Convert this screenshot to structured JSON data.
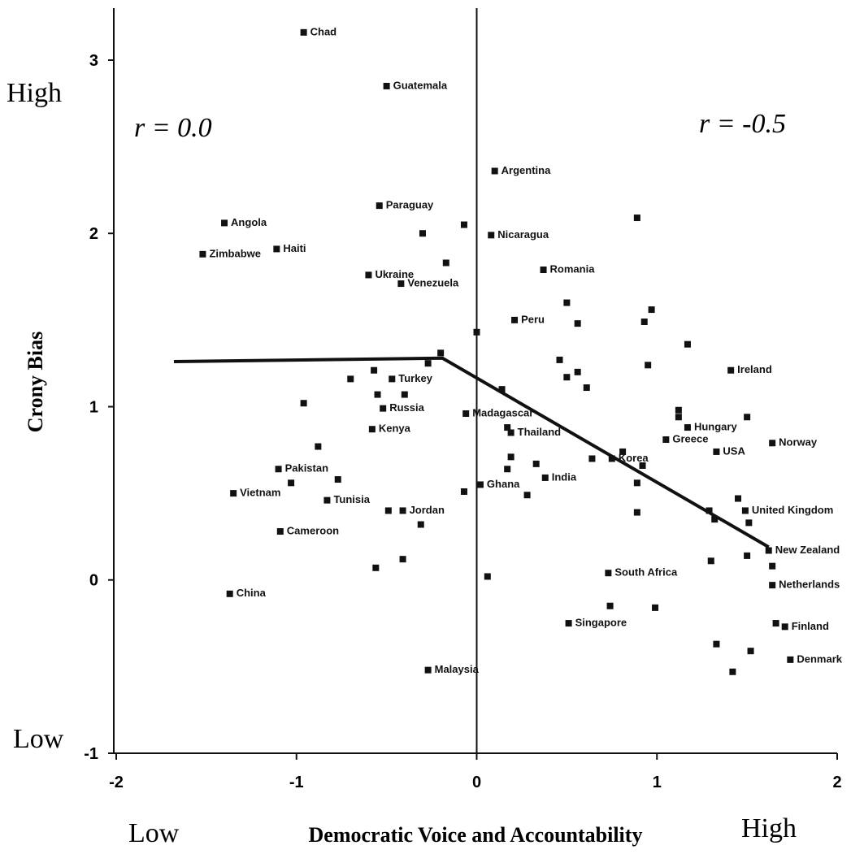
{
  "chart_data": {
    "type": "scatter",
    "x_label": "Democratic Voice and Accountability",
    "y_label": "Crony Bias",
    "annotations": [
      "r = 0.0",
      "r = -0.5"
    ],
    "axis_end_labels": {
      "y_high": "High",
      "y_low": "Low",
      "x_low": "Low",
      "x_high": "High"
    },
    "xlim": [
      -2,
      2
    ],
    "ylim": [
      -1,
      3.3
    ],
    "xticks": [
      -2,
      -1,
      0,
      1,
      2
    ],
    "yticks": [
      -1,
      0,
      1,
      2,
      3
    ],
    "series": [
      {
        "name": "Countries",
        "color": "#111111",
        "x": [
          -0.96,
          -0.5,
          0.1,
          -0.54,
          -1.4,
          0.08,
          -1.52,
          -1.11,
          -0.6,
          -0.42,
          0.37,
          0.21,
          1.41,
          -0.47,
          -0.52,
          -0.06,
          -0.58,
          0.19,
          1.17,
          1.05,
          1.33,
          1.64,
          -1.1,
          0.75,
          0.38,
          0.02,
          -1.35,
          -0.83,
          -0.41,
          -1.09,
          1.49,
          1.62,
          1.64,
          0.73,
          -1.37,
          0.51,
          1.71,
          1.74,
          -0.27,
          -0.3,
          -0.07,
          -0.17,
          0.89,
          0.0,
          0.5,
          0.56,
          0.97,
          0.93,
          1.17,
          0.46,
          0.5,
          0.56,
          0.61,
          0.95,
          -0.2,
          -0.7,
          -0.57,
          -0.55,
          -0.4,
          -0.27,
          -0.96,
          0.14,
          1.12,
          1.12,
          1.5,
          0.17,
          -0.88,
          0.19,
          0.17,
          0.33,
          0.64,
          0.81,
          0.92,
          0.89,
          0.89,
          -1.03,
          -0.77,
          -0.07,
          0.28,
          -0.49,
          -0.31,
          1.29,
          1.32,
          1.45,
          1.51,
          -0.56,
          -0.41,
          0.06,
          1.3,
          1.5,
          1.64,
          0.74,
          0.99,
          1.66,
          1.33,
          1.52,
          1.42
        ],
        "values": [
          3.16,
          2.85,
          2.36,
          2.16,
          2.06,
          1.99,
          1.88,
          1.91,
          1.76,
          1.71,
          1.79,
          1.5,
          1.21,
          1.16,
          0.99,
          0.96,
          0.87,
          0.85,
          0.88,
          0.81,
          0.74,
          0.79,
          0.64,
          0.7,
          0.59,
          0.55,
          0.5,
          0.46,
          0.4,
          0.28,
          0.4,
          0.17,
          -0.03,
          0.04,
          -0.08,
          -0.25,
          -0.27,
          -0.46,
          -0.52,
          2.0,
          2.05,
          1.83,
          2.09,
          1.43,
          1.6,
          1.48,
          1.56,
          1.49,
          1.36,
          1.27,
          1.17,
          1.2,
          1.11,
          1.24,
          1.31,
          1.16,
          1.21,
          1.07,
          1.07,
          1.25,
          1.02,
          1.1,
          0.98,
          0.94,
          0.94,
          0.88,
          0.77,
          0.71,
          0.64,
          0.67,
          0.7,
          0.74,
          0.66,
          0.56,
          0.39,
          0.56,
          0.58,
          0.51,
          0.49,
          0.4,
          0.32,
          0.4,
          0.35,
          0.47,
          0.33,
          0.07,
          0.12,
          0.02,
          0.11,
          0.14,
          0.08,
          -0.15,
          -0.16,
          -0.25,
          -0.37,
          -0.41,
          -0.53
        ],
        "labels": [
          "Chad",
          "Guatemala",
          "Argentina",
          "Paraguay",
          "Angola",
          "Nicaragua",
          "Zimbabwe",
          "Haiti",
          "Ukraine",
          "Venezuela",
          "Romania",
          "Peru",
          "Ireland",
          "Turkey",
          "Russia",
          "Madagascar",
          "Kenya",
          "Thailand",
          "Hungary",
          "Greece",
          "USA",
          "Norway",
          "Pakistan",
          "Korea",
          "India",
          "Ghana",
          "Vietnam",
          "Tunisia",
          "Jordan",
          "Cameroon",
          "United Kingdom",
          "New Zealand",
          "Netherlands",
          "South Africa",
          "China",
          "Singapore",
          "Finland",
          "Denmark",
          "Malaysia",
          null,
          null,
          null,
          null,
          null,
          null,
          null,
          null,
          null,
          null,
          null,
          null,
          null,
          null,
          null,
          null,
          null,
          null,
          null,
          null,
          null,
          null,
          null,
          null,
          null,
          null,
          null,
          null,
          null,
          null,
          null,
          null,
          null,
          null,
          null,
          null,
          null,
          null,
          null,
          null,
          null,
          null,
          null,
          null,
          null,
          null,
          null,
          null,
          null,
          null,
          null,
          null,
          null,
          null,
          null,
          null,
          null,
          null
        ]
      }
    ],
    "fit_line": {
      "x": [
        -1.68,
        -0.19,
        1.62
      ],
      "values": [
        1.26,
        1.28,
        0.19
      ]
    }
  }
}
